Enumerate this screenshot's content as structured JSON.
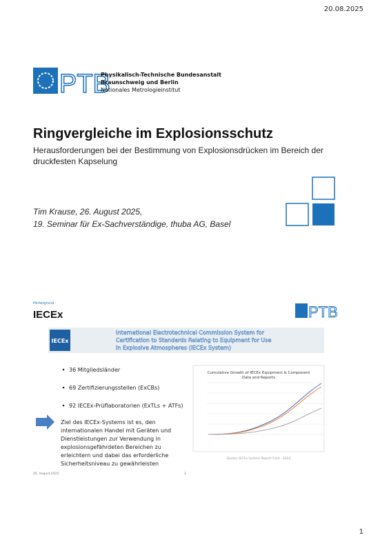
{
  "header": {
    "date": "20.08.2025"
  },
  "slide1": {
    "logo": {
      "mark": "PTB",
      "lines": [
        "Physikalisch-Technische Bundesanstalt",
        "Braunschweig und Berlin",
        "Nationales Metrologieinstitut"
      ]
    },
    "title": "Ringvergleiche im Explosionsschutz",
    "subtitle": [
      "Herausforderungen bei der Bestimmung von Explosionsdrücken im Bereich der",
      "druckfesten Kapselung"
    ],
    "author": [
      "Tim Krause, 26. August 2025,",
      "19. Seminar für Ex-Sachverständige, thuba AG, Basel"
    ]
  },
  "slide2": {
    "section": "Hintergrund",
    "title": "IECEx",
    "logo": "PTB",
    "banner": {
      "logo": "IECEx",
      "lines": [
        "International Electrotechnical Commission System for",
        "Certification to Standards Relating to Equipment for Use",
        "in Explosive Atmospheres (IECEx System)"
      ]
    },
    "bullets": [
      "36 Mitgliedsländer",
      "69 Zertifizierungsstellen (ExCBs)",
      "92 IECEx-Prüflaboratorien (ExTLs + ATFs)"
    ],
    "paragraph": [
      "Ziel des IECEx-Systems ist es, den",
      "internationalen Handel mit Geräten und",
      "Dienstleistungen zur Verwendung in",
      "explosionsgefährdeten Bereichen zu",
      "erleichtern und dabei das erforderliche",
      "Sicherheitsniveau zu gewährleisten"
    ],
    "figure": {
      "title": [
        "Cumulative Growth of IECEx Equipment & Component",
        "Data and Reports"
      ],
      "caption": "Quelle: IECEx System Report Card - 2024"
    },
    "footer": {
      "date": "26. August 2025",
      "page": "2"
    }
  },
  "page_number": "1"
}
